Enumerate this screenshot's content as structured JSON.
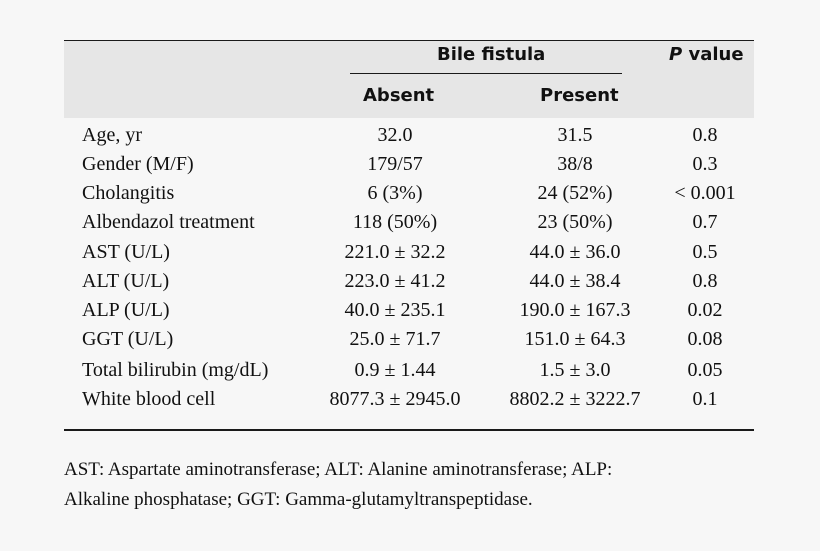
{
  "table": {
    "header": {
      "group_label": "Bile fistula",
      "p_value_prefix": "P",
      "p_value_suffix": " value",
      "col_absent": "Absent",
      "col_present": "Present"
    },
    "rows": [
      {
        "variable": "Age, yr",
        "absent": "32.0",
        "present": "31.5",
        "p": "0.8"
      },
      {
        "variable": "Gender (M/F)",
        "absent": "179/57",
        "present": "38/8",
        "p": "0.3"
      },
      {
        "variable": "Cholangitis",
        "absent": "6 (3%)",
        "present": "24 (52%)",
        "p": "< 0.001"
      },
      {
        "variable": "Albendazol treatment",
        "absent": "118 (50%)",
        "present": "23 (50%)",
        "p": "0.7"
      },
      {
        "variable": "AST (U/L)",
        "absent": "221.0 ± 32.2",
        "present": "44.0 ± 36.0",
        "p": "0.5"
      },
      {
        "variable": "ALT (U/L)",
        "absent": "223.0 ± 41.2",
        "present": "44.0 ± 38.4",
        "p": "0.8"
      },
      {
        "variable": "ALP (U/L)",
        "absent": "40.0 ± 235.1",
        "present": "190.0 ± 167.3",
        "p": "0.02"
      },
      {
        "variable": "GGT (U/L)",
        "absent": "25.0 ± 71.7",
        "present": "151.0 ± 64.3",
        "p": "0.08"
      },
      {
        "variable": "Total bilirubin (mg/dL)",
        "absent": "0.9 ± 1.44",
        "present": "1.5 ± 3.0",
        "p": "0.05"
      },
      {
        "variable": "White blood cell",
        "absent": "8077.3 ± 2945.0",
        "present": "8802.2 ± 3222.7",
        "p": "0.1"
      }
    ],
    "footnote_line1": "AST: Aspartate aminotransferase; ALT: Alanine aminotransferase; ALP:",
    "footnote_line2": "Alkaline phosphatase; GGT: Gamma-glutamyltranspeptidase."
  }
}
